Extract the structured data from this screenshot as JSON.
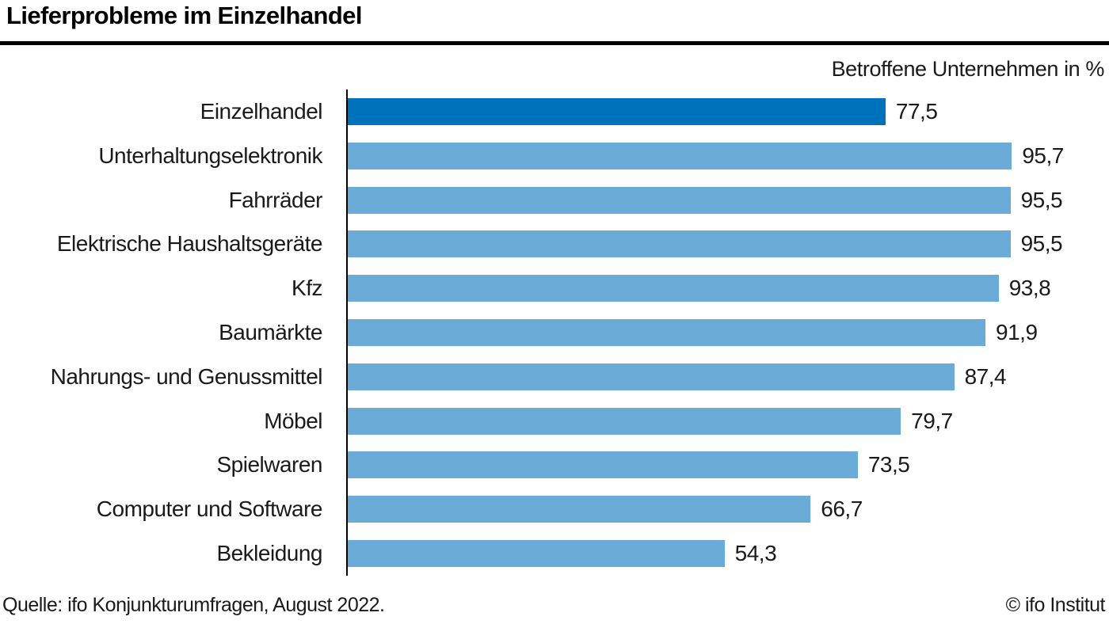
{
  "title": "Lieferprobleme im Einzelhandel",
  "subtitle": "Betroffene Unternehmen in %",
  "footer": {
    "source": "Quelle: ifo Konjunkturumfragen, August 2022.",
    "copyright": "© ifo Institut"
  },
  "colors": {
    "bar_highlight": "#0072bc",
    "bar_default": "#6aabd7",
    "axis": "#000000",
    "text": "#1a1a1a"
  },
  "chart_data": {
    "type": "bar",
    "orientation": "horizontal",
    "title": "Lieferprobleme im Einzelhandel",
    "xlabel": "Betroffene Unternehmen in %",
    "ylabel": "",
    "xlim": [
      0,
      100
    ],
    "grid": false,
    "legend": "none",
    "highlighted_index": 0,
    "categories": [
      "Einzelhandel",
      "Unterhaltungselektronik",
      "Fahrräder",
      "Elektrische Haushaltsgeräte",
      "Kfz",
      "Baumärkte",
      "Nahrungs- und Genussmittel",
      "Möbel",
      "Spielwaren",
      "Computer und Software",
      "Bekleidung"
    ],
    "values": [
      77.5,
      95.7,
      95.5,
      95.5,
      93.8,
      91.9,
      87.4,
      79.7,
      73.5,
      66.7,
      54.3
    ],
    "value_labels": [
      "77,5",
      "95,7",
      "95,5",
      "95,5",
      "93,8",
      "91,9",
      "87,4",
      "79,7",
      "73,5",
      "66,7",
      "54,3"
    ]
  }
}
